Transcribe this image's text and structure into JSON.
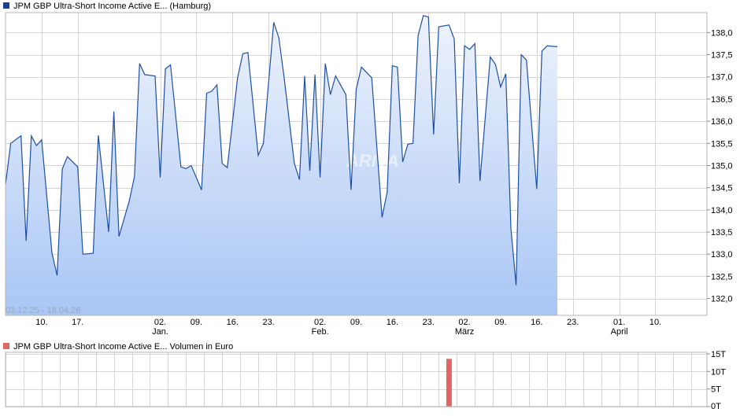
{
  "colors": {
    "price_line": "#1f4fa3",
    "price_legend_swatch": "#1a3f8f",
    "area_top": "#eef3fc",
    "area_bottom": "#a9c6f5",
    "volume_bar": "#e06666",
    "grid": "#d4d4d4"
  },
  "chart_data": [
    {
      "type": "area",
      "legend": "JPM GBP Ultra-Short Income Active E... (Hamburg)",
      "date_range_label": "03.12.25 - 18.04.26",
      "watermark": "ARIVA",
      "ylim": [
        131.62,
        138.45
      ],
      "y_ticks": [
        "132,0",
        "132,5",
        "133,0",
        "133,5",
        "134,0",
        "134,5",
        "135,0",
        "135,5",
        "136,0",
        "136,5",
        "137,0",
        "137,5",
        "138,0"
      ],
      "y_tick_values": [
        132.0,
        132.5,
        133.0,
        133.5,
        134.0,
        134.5,
        135.0,
        135.5,
        136.0,
        136.5,
        137.0,
        137.5,
        138.0
      ],
      "x_ticks": [
        {
          "day": 7,
          "label": "10."
        },
        {
          "day": 14,
          "label": "17."
        },
        {
          "day": 30,
          "label": "02.",
          "month": "Jan."
        },
        {
          "day": 37,
          "label": "09."
        },
        {
          "day": 44,
          "label": "16."
        },
        {
          "day": 51,
          "label": "23."
        },
        {
          "day": 61,
          "label": "02.",
          "month": "Feb."
        },
        {
          "day": 68,
          "label": "09."
        },
        {
          "day": 75,
          "label": "16."
        },
        {
          "day": 82,
          "label": "23."
        },
        {
          "day": 89,
          "label": "02.",
          "month": "März"
        },
        {
          "day": 96,
          "label": "09."
        },
        {
          "day": 103,
          "label": "16."
        },
        {
          "day": 110,
          "label": "23."
        },
        {
          "day": 119,
          "label": "01.",
          "month": "April"
        },
        {
          "day": 126,
          "label": "10."
        }
      ],
      "x_domain_days": [
        0,
        136
      ],
      "x_is_day_index_from": "03.12.25",
      "series": [
        {
          "points": [
            [
              0,
              134.57
            ],
            [
              1,
              135.5
            ],
            [
              3,
              135.67
            ],
            [
              4,
              133.3
            ],
            [
              5,
              135.67
            ],
            [
              6,
              135.45
            ],
            [
              7,
              135.58
            ],
            [
              9,
              133.03
            ],
            [
              10,
              132.52
            ],
            [
              11,
              134.92
            ],
            [
              12,
              135.2
            ],
            [
              14,
              134.97
            ],
            [
              15,
              133.0
            ],
            [
              17,
              133.02
            ],
            [
              18,
              135.68
            ],
            [
              20,
              133.5
            ],
            [
              21,
              136.22
            ],
            [
              22,
              133.4
            ],
            [
              24,
              134.2
            ],
            [
              25,
              134.75
            ],
            [
              26,
              137.3
            ],
            [
              27,
              137.05
            ],
            [
              29,
              137.02
            ],
            [
              30,
              134.73
            ],
            [
              31,
              137.18
            ],
            [
              32,
              137.27
            ],
            [
              34,
              134.97
            ],
            [
              35,
              134.93
            ],
            [
              36,
              135.0
            ],
            [
              38,
              134.45
            ],
            [
              39,
              136.63
            ],
            [
              40,
              136.68
            ],
            [
              41,
              136.82
            ],
            [
              42,
              135.05
            ],
            [
              43,
              134.95
            ],
            [
              45,
              136.98
            ],
            [
              46,
              137.52
            ],
            [
              47,
              137.55
            ],
            [
              49,
              135.23
            ],
            [
              50,
              135.5
            ],
            [
              52,
              138.23
            ],
            [
              53,
              137.88
            ],
            [
              54,
              137.0
            ],
            [
              56,
              135.05
            ],
            [
              57,
              134.68
            ],
            [
              58,
              137.02
            ],
            [
              59,
              134.88
            ],
            [
              60,
              137.05
            ],
            [
              61,
              134.73
            ],
            [
              62,
              137.3
            ],
            [
              63,
              136.6
            ],
            [
              64,
              137.02
            ],
            [
              66,
              136.6
            ],
            [
              67,
              134.45
            ],
            [
              68,
              136.72
            ],
            [
              69,
              137.22
            ],
            [
              70,
              137.1
            ],
            [
              71,
              136.98
            ],
            [
              73,
              133.83
            ],
            [
              74,
              134.4
            ],
            [
              75,
              137.25
            ],
            [
              76,
              137.22
            ],
            [
              77,
              135.08
            ],
            [
              78,
              135.48
            ],
            [
              79,
              135.5
            ],
            [
              80,
              137.93
            ],
            [
              81,
              138.38
            ],
            [
              82,
              138.35
            ],
            [
              83,
              135.7
            ],
            [
              84,
              138.13
            ],
            [
              86,
              138.17
            ],
            [
              87,
              137.85
            ],
            [
              88,
              134.6
            ],
            [
              89,
              137.7
            ],
            [
              90,
              137.62
            ],
            [
              91,
              137.75
            ],
            [
              92,
              134.65
            ],
            [
              94,
              137.45
            ],
            [
              95,
              137.28
            ],
            [
              96,
              136.77
            ],
            [
              97,
              137.07
            ],
            [
              98,
              133.58
            ],
            [
              99,
              132.3
            ],
            [
              100,
              137.5
            ],
            [
              101,
              137.38
            ],
            [
              103,
              134.47
            ],
            [
              104,
              137.58
            ],
            [
              105,
              137.7
            ],
            [
              107,
              137.68
            ]
          ]
        }
      ]
    },
    {
      "type": "bar",
      "legend": "JPM GBP Ultra-Short Income Active E... Volumen in Euro",
      "ylim": [
        0,
        15
      ],
      "y_ticks": [
        "15T",
        "10T",
        "5T",
        "0T"
      ],
      "y_tick_values": [
        15,
        10,
        5,
        0
      ],
      "x_domain_days": [
        0,
        136
      ],
      "bars": [
        {
          "day": 86,
          "value": 13.6
        }
      ]
    }
  ]
}
